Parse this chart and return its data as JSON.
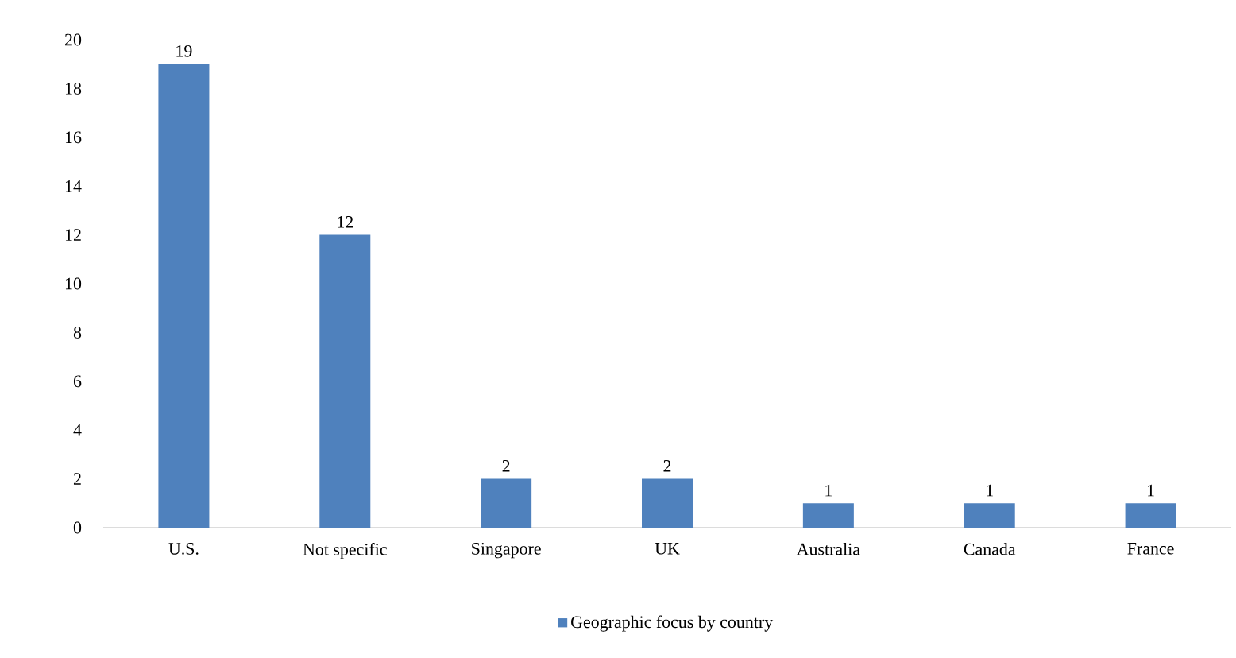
{
  "chart_data": {
    "type": "bar",
    "categories": [
      "U.S.",
      "Not specific",
      "Singapore",
      "UK",
      "Australia",
      "Canada",
      "France"
    ],
    "series": [
      {
        "name": "Geographic focus by country",
        "color": "#4f81bd",
        "values": [
          19,
          12,
          2,
          2,
          1,
          1,
          1
        ]
      }
    ],
    "ylim": [
      0,
      20
    ],
    "yticks": [
      0,
      2,
      4,
      6,
      8,
      10,
      12,
      14,
      16,
      18,
      20
    ],
    "data_labels": true,
    "legend": "bottom"
  }
}
